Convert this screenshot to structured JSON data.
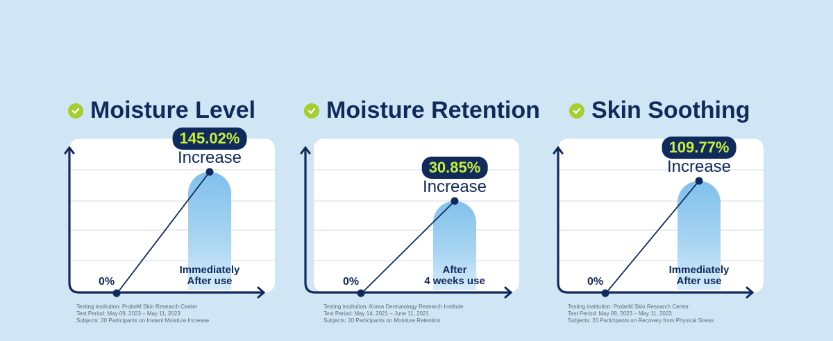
{
  "colors": {
    "background": "#d0e6f5",
    "title": "#102a5c",
    "check": "#a3cf2f",
    "badge_bg": "#102a5c",
    "badge_text": "#c7f03c",
    "bar_top": "#80c0ec",
    "bar_bottom": "#d5ebfa"
  },
  "chart_data": [
    {
      "type": "bar",
      "title": "Moisture Level",
      "icon": "check-circle-icon",
      "categories": [
        "0%",
        "Immediately\nAfter use"
      ],
      "values": [
        0,
        145.02
      ],
      "badge": "145.02%",
      "badge_label": "Increase",
      "zero_label": "0%",
      "bar_label": "Immediately\nAfter use",
      "notes": [
        "Testing institution: ProbeM Skin Research Center",
        "Test Period: May 09, 2023 – May 11, 2023",
        "Subjects: 20 Participants on Instant Moisture Increase"
      ]
    },
    {
      "type": "bar",
      "title": "Moisture Retention",
      "icon": "check-circle-icon",
      "categories": [
        "0%",
        "After\n4 weeks use"
      ],
      "values": [
        0,
        30.85
      ],
      "badge": "30.85%",
      "badge_label": "Increase",
      "zero_label": "0%",
      "bar_label": "After\n4 weeks use",
      "notes": [
        "Testing institution: Korea Dermatology Research Institute",
        "Test Period: May 14, 2021 – June 11, 2021",
        "Subjects: 20 Participants on Moisture Retention"
      ]
    },
    {
      "type": "bar",
      "title": "Skin Soothing",
      "icon": "check-circle-icon",
      "categories": [
        "0%",
        "Immediately\nAfter use"
      ],
      "values": [
        0,
        109.77
      ],
      "badge": "109.77%",
      "badge_label": "Increase",
      "zero_label": "0%",
      "bar_label": "Immediately\nAfter use",
      "notes": [
        "Testing institution: ProbeM Skin Research Center",
        "Test Period: May 09, 2023 – May 11, 2023",
        "Subjects: 20 Participants on Recovery from Physical Stress"
      ]
    }
  ]
}
